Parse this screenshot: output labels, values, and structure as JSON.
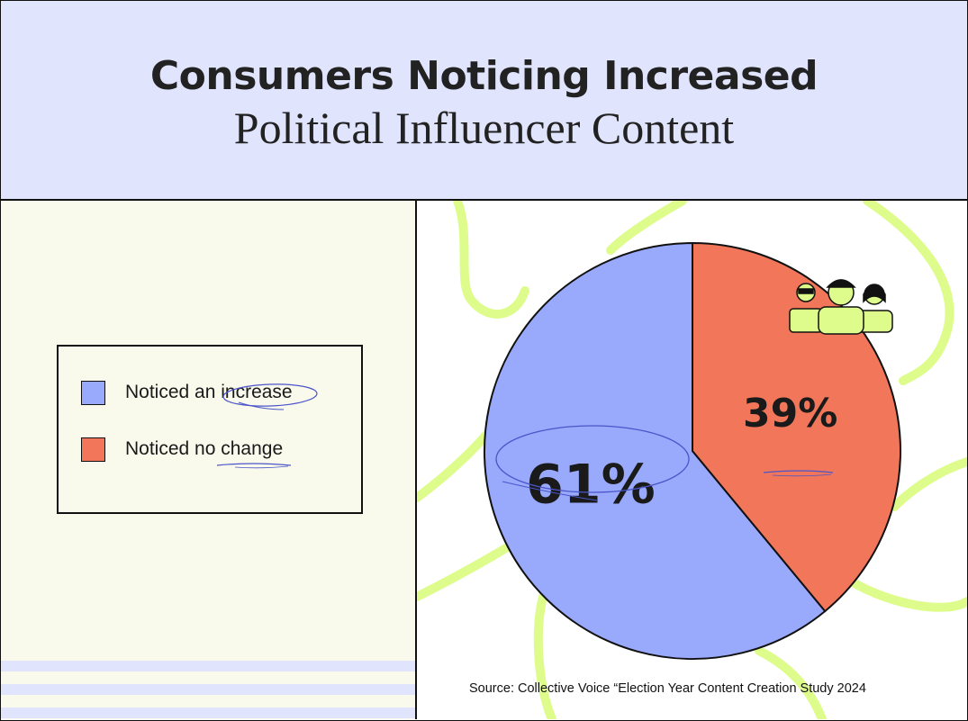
{
  "title": {
    "line1": "Consumers Noticing Increased",
    "line2": "Political Influencer Content"
  },
  "legend": {
    "items": [
      {
        "label": "Noticed an increase",
        "color": "#99a9fc"
      },
      {
        "label": "Noticed no change",
        "color": "#f2775a"
      }
    ]
  },
  "chart_data": {
    "type": "pie",
    "categories": [
      "Noticed an increase",
      "Noticed no change"
    ],
    "values": [
      61,
      39
    ],
    "data_labels": [
      "61%",
      "39%"
    ],
    "colors": [
      "#99a9fc",
      "#f2775a"
    ]
  },
  "source": "Source: Collective Voice “Election Year Content Creation Study 2024",
  "icons": [
    "people-group-icon"
  ],
  "colors": {
    "header_bg": "#e1e4fd",
    "left_bg": "#fafaec",
    "decor_lines": "#ddfc8c",
    "annotation_ink": "#4a55c8"
  }
}
